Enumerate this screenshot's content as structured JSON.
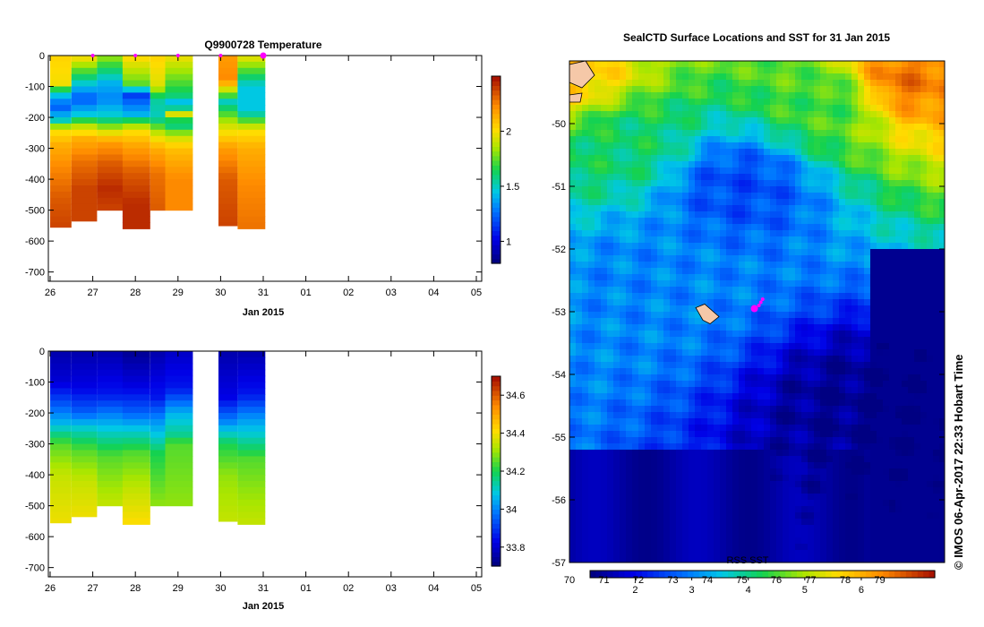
{
  "chart_data": [
    {
      "type": "heatmap",
      "title": "Q9900728  Temperature",
      "xlabel": "Jan 2015",
      "ylabel": "",
      "x_ticks": [
        "26",
        "27",
        "28",
        "29",
        "30",
        "31",
        "01",
        "02",
        "03",
        "04",
        "05"
      ],
      "y_ticks": [
        "0",
        "-100",
        "-200",
        "-300",
        "-400",
        "-500",
        "-600",
        "-700"
      ],
      "ylim": [
        -730,
        0
      ],
      "colorbar_ticks": [
        "1",
        "1.5",
        "2"
      ],
      "colorbar_range": [
        0.8,
        2.5
      ],
      "profile_markers_x": [
        27,
        28,
        29,
        30,
        31
      ],
      "profiles": [
        {
          "x0": 26.0,
          "x1": 26.5,
          "max_depth": -555,
          "samples": [
            [
              0,
              2.05
            ],
            [
              -90,
              2.0
            ],
            [
              -120,
              1.5
            ],
            [
              -165,
              1.2
            ],
            [
              -210,
              1.5
            ],
            [
              -240,
              2.0
            ],
            [
              -290,
              2.15
            ],
            [
              -360,
              2.25
            ],
            [
              -460,
              2.35
            ],
            [
              -555,
              2.4
            ]
          ]
        },
        {
          "x0": 26.5,
          "x1": 27.1,
          "max_depth": -535,
          "samples": [
            [
              0,
              2.05
            ],
            [
              -95,
              1.45
            ],
            [
              -140,
              1.2
            ],
            [
              -190,
              1.45
            ],
            [
              -230,
              1.9
            ],
            [
              -270,
              2.15
            ],
            [
              -340,
              2.3
            ],
            [
              -430,
              2.4
            ],
            [
              -535,
              2.4
            ]
          ]
        },
        {
          "x0": 27.1,
          "x1": 27.7,
          "max_depth": -500,
          "samples": [
            [
              0,
              1.85
            ],
            [
              -90,
              1.4
            ],
            [
              -140,
              1.3
            ],
            [
              -200,
              1.5
            ],
            [
              -240,
              1.9
            ],
            [
              -280,
              2.2
            ],
            [
              -350,
              2.35
            ],
            [
              -430,
              2.45
            ],
            [
              -500,
              2.4
            ]
          ]
        },
        {
          "x0": 27.7,
          "x1": 28.35,
          "max_depth": -560,
          "samples": [
            [
              0,
              2.05
            ],
            [
              -90,
              1.75
            ],
            [
              -130,
              1.15
            ],
            [
              -190,
              1.4
            ],
            [
              -240,
              2.0
            ],
            [
              -300,
              2.2
            ],
            [
              -380,
              2.35
            ],
            [
              -480,
              2.45
            ],
            [
              -560,
              2.45
            ]
          ]
        },
        {
          "x0": 28.35,
          "x1": 28.7,
          "max_depth": -500,
          "samples": [
            [
              0,
              2.05
            ],
            [
              -100,
              1.95
            ],
            [
              -140,
              1.55
            ],
            [
              -200,
              1.5
            ],
            [
              -250,
              1.9
            ],
            [
              -300,
              2.15
            ],
            [
              -380,
              2.3
            ],
            [
              -500,
              2.35
            ]
          ]
        },
        {
          "x0": 28.7,
          "x1": 29.35,
          "max_depth": -500,
          "samples": [
            [
              0,
              2.0
            ],
            [
              -130,
              1.6
            ],
            [
              -160,
              1.35
            ],
            [
              -190,
              1.95
            ],
            [
              -220,
              1.5
            ],
            [
              -260,
              1.9
            ],
            [
              -300,
              2.1
            ],
            [
              -400,
              2.25
            ],
            [
              -500,
              2.25
            ]
          ]
        },
        {
          "x0": 29.95,
          "x1": 30.4,
          "max_depth": -550,
          "samples": [
            [
              0,
              2.2
            ],
            [
              -80,
              2.25
            ],
            [
              -150,
              1.5
            ],
            [
              -220,
              1.9
            ],
            [
              -300,
              2.2
            ],
            [
              -400,
              2.35
            ],
            [
              -550,
              2.4
            ]
          ]
        },
        {
          "x0": 30.4,
          "x1": 31.05,
          "max_depth": -560,
          "samples": [
            [
              0,
              2.0
            ],
            [
              -100,
              1.45
            ],
            [
              -180,
              1.45
            ],
            [
              -240,
              2.0
            ],
            [
              -300,
              2.15
            ],
            [
              -420,
              2.25
            ],
            [
              -560,
              2.3
            ]
          ]
        }
      ]
    },
    {
      "type": "heatmap",
      "title": "",
      "xlabel": "Jan 2015",
      "ylabel": "",
      "x_ticks": [
        "26",
        "27",
        "28",
        "29",
        "30",
        "31",
        "01",
        "02",
        "03",
        "04",
        "05"
      ],
      "y_ticks": [
        "0",
        "-100",
        "-200",
        "-300",
        "-400",
        "-500",
        "-600",
        "-700"
      ],
      "ylim": [
        -730,
        0
      ],
      "colorbar_ticks": [
        "33.8",
        "34",
        "34.2",
        "34.4",
        "34.6"
      ],
      "colorbar_range": [
        33.7,
        34.7
      ],
      "profiles": [
        {
          "x0": 26.0,
          "x1": 26.5,
          "max_depth": -555,
          "samples": [
            [
              0,
              33.75
            ],
            [
              -100,
              33.8
            ],
            [
              -180,
              33.95
            ],
            [
              -230,
              34.05
            ],
            [
              -300,
              34.25
            ],
            [
              -400,
              34.35
            ],
            [
              -555,
              34.4
            ]
          ]
        },
        {
          "x0": 26.5,
          "x1": 27.1,
          "max_depth": -535,
          "samples": [
            [
              0,
              33.75
            ],
            [
              -120,
              33.82
            ],
            [
              -200,
              33.95
            ],
            [
              -250,
              34.1
            ],
            [
              -320,
              34.25
            ],
            [
              -420,
              34.35
            ],
            [
              -535,
              34.4
            ]
          ]
        },
        {
          "x0": 27.1,
          "x1": 27.7,
          "max_depth": -500,
          "samples": [
            [
              0,
              33.75
            ],
            [
              -140,
              33.85
            ],
            [
              -210,
              34.0
            ],
            [
              -270,
              34.12
            ],
            [
              -340,
              34.25
            ],
            [
              -500,
              34.35
            ]
          ]
        },
        {
          "x0": 27.7,
          "x1": 28.35,
          "max_depth": -560,
          "samples": [
            [
              0,
              33.72
            ],
            [
              -120,
              33.82
            ],
            [
              -200,
              33.95
            ],
            [
              -260,
              34.1
            ],
            [
              -330,
              34.25
            ],
            [
              -450,
              34.35
            ],
            [
              -560,
              34.42
            ]
          ]
        },
        {
          "x0": 28.35,
          "x1": 28.7,
          "max_depth": -500,
          "samples": [
            [
              0,
              33.75
            ],
            [
              -150,
              33.85
            ],
            [
              -220,
              34.0
            ],
            [
              -280,
              34.1
            ],
            [
              -330,
              34.2
            ],
            [
              -500,
              34.3
            ]
          ]
        },
        {
          "x0": 28.7,
          "x1": 29.35,
          "max_depth": -500,
          "samples": [
            [
              0,
              33.78
            ],
            [
              -120,
              33.85
            ],
            [
              -160,
              33.95
            ],
            [
              -200,
              34.05
            ],
            [
              -270,
              34.15
            ],
            [
              -300,
              34.25
            ],
            [
              -500,
              34.3
            ]
          ]
        },
        {
          "x0": 29.95,
          "x1": 30.4,
          "max_depth": -550,
          "samples": [
            [
              0,
              33.75
            ],
            [
              -150,
              33.82
            ],
            [
              -230,
              34.0
            ],
            [
              -300,
              34.2
            ],
            [
              -400,
              34.3
            ],
            [
              -550,
              34.35
            ]
          ]
        },
        {
          "x0": 30.4,
          "x1": 31.05,
          "max_depth": -560,
          "samples": [
            [
              0,
              33.75
            ],
            [
              -140,
              33.85
            ],
            [
              -210,
              34.0
            ],
            [
              -270,
              34.1
            ],
            [
              -350,
              34.25
            ],
            [
              -450,
              34.3
            ],
            [
              -560,
              34.35
            ]
          ]
        }
      ]
    },
    {
      "type": "heatmap",
      "title": "SealCTD Surface Locations and SST for 31 Jan 2015",
      "xlabel": "",
      "ylabel": "",
      "y_ticks": [
        "-50",
        "-51",
        "-52",
        "-53",
        "-54",
        "-55",
        "-56",
        "-57"
      ],
      "ylim": [
        -57,
        -49
      ],
      "colorbar_label": "RSS SST",
      "colorbar_ticks_top": [
        "70",
        "71",
        "72",
        "73",
        "74",
        "75",
        "76",
        "77",
        "78",
        "79"
      ],
      "colorbar_ticks_bottom": [
        "2",
        "3",
        "4",
        "5",
        "6"
      ],
      "colorbar_range_celsius": [
        1.2,
        7.3
      ],
      "sst_features": [
        {
          "lat": -49.2,
          "lonfrac": 0.0,
          "value": 5.8
        },
        {
          "lat": -49.3,
          "lonfrac": 0.88,
          "value": 6.6
        },
        {
          "lat": -49.6,
          "lonfrac": 0.7,
          "value": 4.4
        },
        {
          "lat": -50.3,
          "lonfrac": 0.15,
          "value": 4.1
        },
        {
          "lat": -51.0,
          "lonfrac": 0.45,
          "value": 2.5
        },
        {
          "lat": -52.5,
          "lonfrac": 0.2,
          "value": 3.0
        },
        {
          "lat": -54.5,
          "lonfrac": 0.8,
          "value": 1.3
        }
      ],
      "island": {
        "lat": -53.05,
        "lonfrac": 0.37
      },
      "seal_positions": [
        {
          "lat": -52.95,
          "lonfrac": 0.493
        },
        {
          "lat": -52.9,
          "lonfrac": 0.505
        },
        {
          "lat": -52.85,
          "lonfrac": 0.51
        },
        {
          "lat": -52.8,
          "lonfrac": 0.515
        }
      ]
    }
  ],
  "credit": "© IMOS 06-Apr-2017 22:33 Hobart Time",
  "colors": {
    "marker": "#ff00ff",
    "land": "#f5c8a8",
    "ocean_deep": "#000080"
  }
}
